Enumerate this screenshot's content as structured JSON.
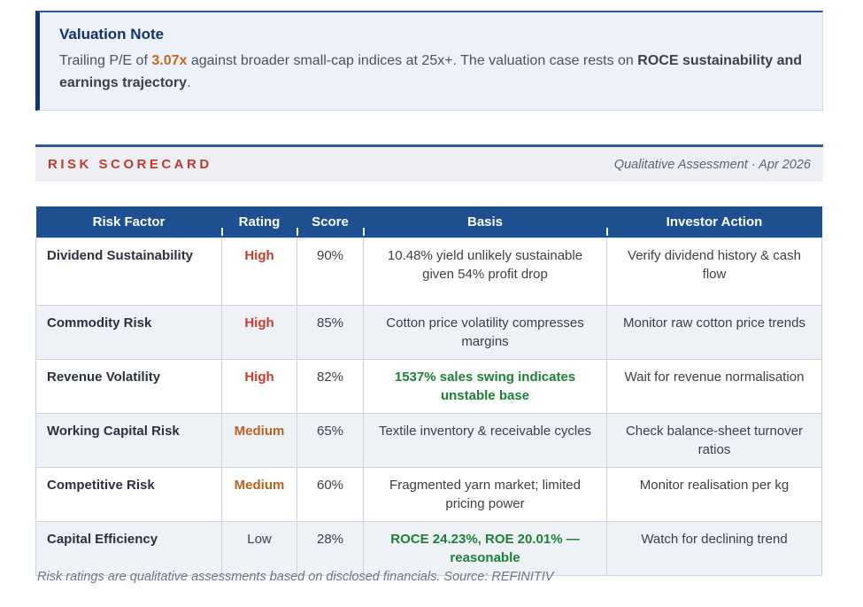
{
  "valuation_note": {
    "title": "Valuation Note",
    "body_prefix": "Trailing P/E of ",
    "pe_value": "3.07x",
    "body_middle": " against broader small-cap indices at 25x+. The valuation case rests on ",
    "bold_phrase": "ROCE sustainability and earnings trajectory",
    "body_suffix": "."
  },
  "scorecard": {
    "title": "RISK SCORECARD",
    "subtitle": "Qualitative Assessment · Apr 2026"
  },
  "table": {
    "headers": [
      "Risk Factor",
      "Rating",
      "Score",
      "Basis",
      "Investor Action"
    ],
    "rows": [
      {
        "factor": "Dividend Sustainability",
        "rating": "High",
        "rating_level": "high",
        "score": "90%",
        "basis": "10.48% yield unlikely sustainable given 54% profit drop",
        "basis_highlight": false,
        "action": "Verify dividend history & cash flow"
      },
      {
        "factor": "Commodity Risk",
        "rating": "High",
        "rating_level": "high",
        "score": "85%",
        "basis": "Cotton price volatility compresses margins",
        "basis_highlight": false,
        "action": "Monitor raw cotton price trends"
      },
      {
        "factor": "Revenue Volatility",
        "rating": "High",
        "rating_level": "high",
        "score": "82%",
        "basis": "1537% sales swing indicates unstable base",
        "basis_highlight": true,
        "action": "Wait for revenue normalisation"
      },
      {
        "factor": "Working Capital Risk",
        "rating": "Medium",
        "rating_level": "medium",
        "score": "65%",
        "basis": "Textile inventory & receivable cycles",
        "basis_highlight": false,
        "action": "Check balance-sheet turnover ratios"
      },
      {
        "factor": "Competitive Risk",
        "rating": "Medium",
        "rating_level": "medium",
        "score": "60%",
        "basis": "Fragmented yarn market; limited pricing power",
        "basis_highlight": false,
        "action": "Monitor realisation per kg"
      },
      {
        "factor": "Capital Efficiency",
        "rating": "Low",
        "rating_level": "low",
        "score": "28%",
        "basis": "ROCE 24.23%, ROE 20.01% — reasonable",
        "basis_highlight": true,
        "action": "Watch for declining trend"
      }
    ]
  },
  "footer": {
    "note": "Risk ratings are qualitative assessments based on disclosed financials. Source: REFINITIV"
  },
  "colors": {
    "header_blue": "#1d4f91",
    "note_border_navy": "#15356e",
    "note_bg": "#edf1f9",
    "accent_red": "#c23a2d",
    "rating_high": "#cb3a2e",
    "rating_medium": "#bf6020",
    "highlight_green": "#1d8038",
    "pe_orange": "#c4691a",
    "zebra_row": "#eef1f6"
  }
}
